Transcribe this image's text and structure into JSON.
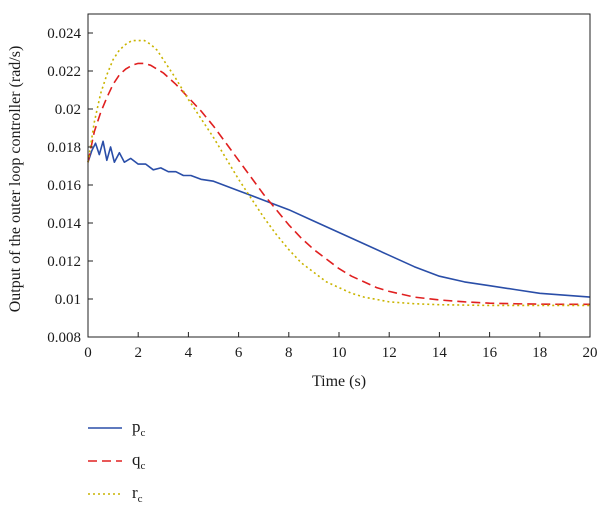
{
  "chart_data": {
    "type": "line",
    "xlabel": "Time (s)",
    "ylabel": "Output of the outer loop controller (rad/s)",
    "xlim": [
      0,
      20
    ],
    "ylim": [
      0.008,
      0.025
    ],
    "xticks": [
      0,
      2,
      4,
      6,
      8,
      10,
      12,
      14,
      16,
      18,
      20
    ],
    "xtick_labels": [
      "0",
      "2",
      "4",
      "6",
      "8",
      "10",
      "12",
      "14",
      "16",
      "18",
      "20"
    ],
    "yticks": [
      0.008,
      0.01,
      0.012,
      0.014,
      0.016,
      0.018,
      0.02,
      0.022,
      0.024
    ],
    "ytick_labels": [
      "0.008",
      "0.01",
      "0.012",
      "0.014",
      "0.016",
      "0.018",
      "0.02",
      "0.022",
      "0.024"
    ],
    "grid": false,
    "legend_position": "below plot, left",
    "series": [
      {
        "name": "p",
        "subscript": "c",
        "color": "#2a4ea8",
        "style": "solid",
        "points": [
          [
            0,
            0.0172
          ],
          [
            0.15,
            0.0178
          ],
          [
            0.3,
            0.0182
          ],
          [
            0.45,
            0.0176
          ],
          [
            0.6,
            0.0183
          ],
          [
            0.75,
            0.0173
          ],
          [
            0.9,
            0.018
          ],
          [
            1.05,
            0.0172
          ],
          [
            1.25,
            0.0177
          ],
          [
            1.45,
            0.0172
          ],
          [
            1.7,
            0.0174
          ],
          [
            2,
            0.0171
          ],
          [
            2.3,
            0.0171
          ],
          [
            2.6,
            0.0168
          ],
          [
            2.9,
            0.0169
          ],
          [
            3.2,
            0.0167
          ],
          [
            3.5,
            0.0167
          ],
          [
            3.8,
            0.0165
          ],
          [
            4.1,
            0.0165
          ],
          [
            4.5,
            0.0163
          ],
          [
            5,
            0.0162
          ],
          [
            6,
            0.0157
          ],
          [
            7,
            0.0152
          ],
          [
            8,
            0.0147
          ],
          [
            9,
            0.0141
          ],
          [
            10,
            0.0135
          ],
          [
            11,
            0.0129
          ],
          [
            12,
            0.0123
          ],
          [
            13,
            0.0117
          ],
          [
            14,
            0.0112
          ],
          [
            15,
            0.0109
          ],
          [
            16,
            0.0107
          ],
          [
            17,
            0.0105
          ],
          [
            18,
            0.0103
          ],
          [
            19,
            0.0102
          ],
          [
            20,
            0.0101
          ]
        ]
      },
      {
        "name": "q",
        "subscript": "c",
        "color": "#e02020",
        "style": "dashed",
        "points": [
          [
            0,
            0.0172
          ],
          [
            0.25,
            0.0188
          ],
          [
            0.5,
            0.0198
          ],
          [
            0.75,
            0.0206
          ],
          [
            1,
            0.0213
          ],
          [
            1.25,
            0.0218
          ],
          [
            1.5,
            0.0221
          ],
          [
            1.75,
            0.0223
          ],
          [
            2,
            0.0224
          ],
          [
            2.25,
            0.0224
          ],
          [
            2.5,
            0.0223
          ],
          [
            2.75,
            0.0221
          ],
          [
            3,
            0.0219
          ],
          [
            3.5,
            0.0213
          ],
          [
            4,
            0.0206
          ],
          [
            4.5,
            0.0199
          ],
          [
            5,
            0.0191
          ],
          [
            5.5,
            0.0182
          ],
          [
            6,
            0.0173
          ],
          [
            6.5,
            0.0164
          ],
          [
            7,
            0.0155
          ],
          [
            7.5,
            0.0147
          ],
          [
            8,
            0.0139
          ],
          [
            8.5,
            0.0132
          ],
          [
            9,
            0.0126
          ],
          [
            9.5,
            0.0121
          ],
          [
            10,
            0.0116
          ],
          [
            10.5,
            0.0112
          ],
          [
            11,
            0.0109
          ],
          [
            11.5,
            0.0106
          ],
          [
            12,
            0.0104
          ],
          [
            13,
            0.0101
          ],
          [
            14,
            0.00995
          ],
          [
            15,
            0.00985
          ],
          [
            16,
            0.00978
          ],
          [
            17,
            0.00975
          ],
          [
            18,
            0.00973
          ],
          [
            19,
            0.00972
          ],
          [
            20,
            0.00972
          ]
        ]
      },
      {
        "name": "r",
        "subscript": "c",
        "color": "#c9b400",
        "style": "dotted",
        "points": [
          [
            0,
            0.0172
          ],
          [
            0.25,
            0.0193
          ],
          [
            0.5,
            0.0208
          ],
          [
            0.75,
            0.0218
          ],
          [
            1,
            0.0226
          ],
          [
            1.25,
            0.0231
          ],
          [
            1.5,
            0.0234
          ],
          [
            1.75,
            0.0236
          ],
          [
            2,
            0.0236
          ],
          [
            2.25,
            0.0236
          ],
          [
            2.5,
            0.0234
          ],
          [
            2.75,
            0.0231
          ],
          [
            3,
            0.0226
          ],
          [
            3.5,
            0.0216
          ],
          [
            4,
            0.0205
          ],
          [
            4.5,
            0.0195
          ],
          [
            5,
            0.0185
          ],
          [
            5.5,
            0.0174
          ],
          [
            6,
            0.0163
          ],
          [
            6.5,
            0.0153
          ],
          [
            7,
            0.0143
          ],
          [
            7.5,
            0.0134
          ],
          [
            8,
            0.0126
          ],
          [
            8.5,
            0.0119
          ],
          [
            9,
            0.0114
          ],
          [
            9.5,
            0.0109
          ],
          [
            10,
            0.0106
          ],
          [
            10.5,
            0.0103
          ],
          [
            11,
            0.0101
          ],
          [
            12,
            0.00985
          ],
          [
            13,
            0.00975
          ],
          [
            14,
            0.0097
          ],
          [
            15,
            0.00968
          ],
          [
            16,
            0.00966
          ],
          [
            17,
            0.00966
          ],
          [
            18,
            0.00966
          ],
          [
            19,
            0.00966
          ],
          [
            20,
            0.00966
          ]
        ]
      }
    ]
  }
}
